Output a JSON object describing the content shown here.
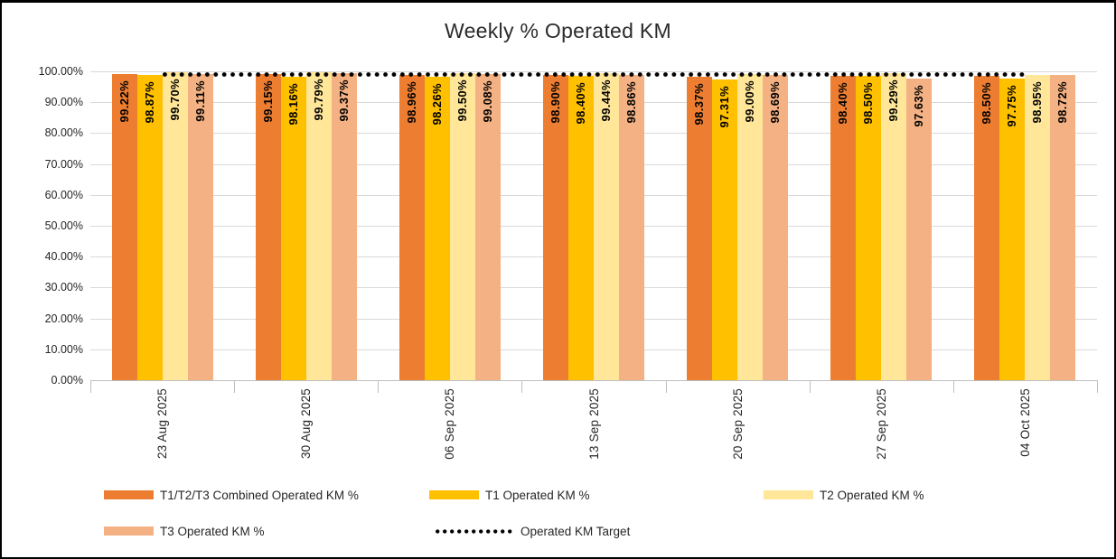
{
  "chart_data": {
    "type": "bar",
    "title": "Weekly % Operated KM",
    "categories": [
      "23 Aug 2025",
      "30 Aug 2025",
      "06 Sep 2025",
      "13 Sep 2025",
      "20 Sep 2025",
      "27 Sep 2025",
      "04 Oct 2025"
    ],
    "series": [
      {
        "name": "T1/T2/T3 Combined Operated KM %",
        "color": "#ED7D31",
        "values": [
          99.22,
          99.15,
          98.96,
          98.9,
          98.37,
          98.4,
          98.5
        ]
      },
      {
        "name": "T1 Operated KM %",
        "color": "#FFC000",
        "values": [
          98.87,
          98.16,
          98.26,
          98.4,
          97.31,
          98.5,
          97.75
        ]
      },
      {
        "name": "T2 Operated KM %",
        "color": "#FFE699",
        "values": [
          99.7,
          99.79,
          99.5,
          99.44,
          99.0,
          99.29,
          98.95
        ]
      },
      {
        "name": "T3 Operated KM %",
        "color": "#F4B183",
        "values": [
          99.11,
          99.37,
          99.08,
          98.86,
          98.69,
          97.63,
          98.72
        ]
      }
    ],
    "target": {
      "name": "Operated KM Target",
      "value": 99,
      "color": "#000000",
      "style": "dotted"
    },
    "y_axis": {
      "min": 0,
      "max": 100,
      "step": 10,
      "tick_labels": [
        "100.00%",
        "90.00%",
        "80.00%",
        "70.00%",
        "60.00%",
        "50.00%",
        "40.00%",
        "30.00%",
        "20.00%",
        "10.00%",
        "0.00%"
      ]
    },
    "value_label_format": "0.00%",
    "grid": true,
    "legend_position": "bottom"
  },
  "colors": {
    "grid": "#D9D9D9",
    "axis": "#BFBFBF",
    "text": "#262626",
    "value_label": "#000000"
  }
}
